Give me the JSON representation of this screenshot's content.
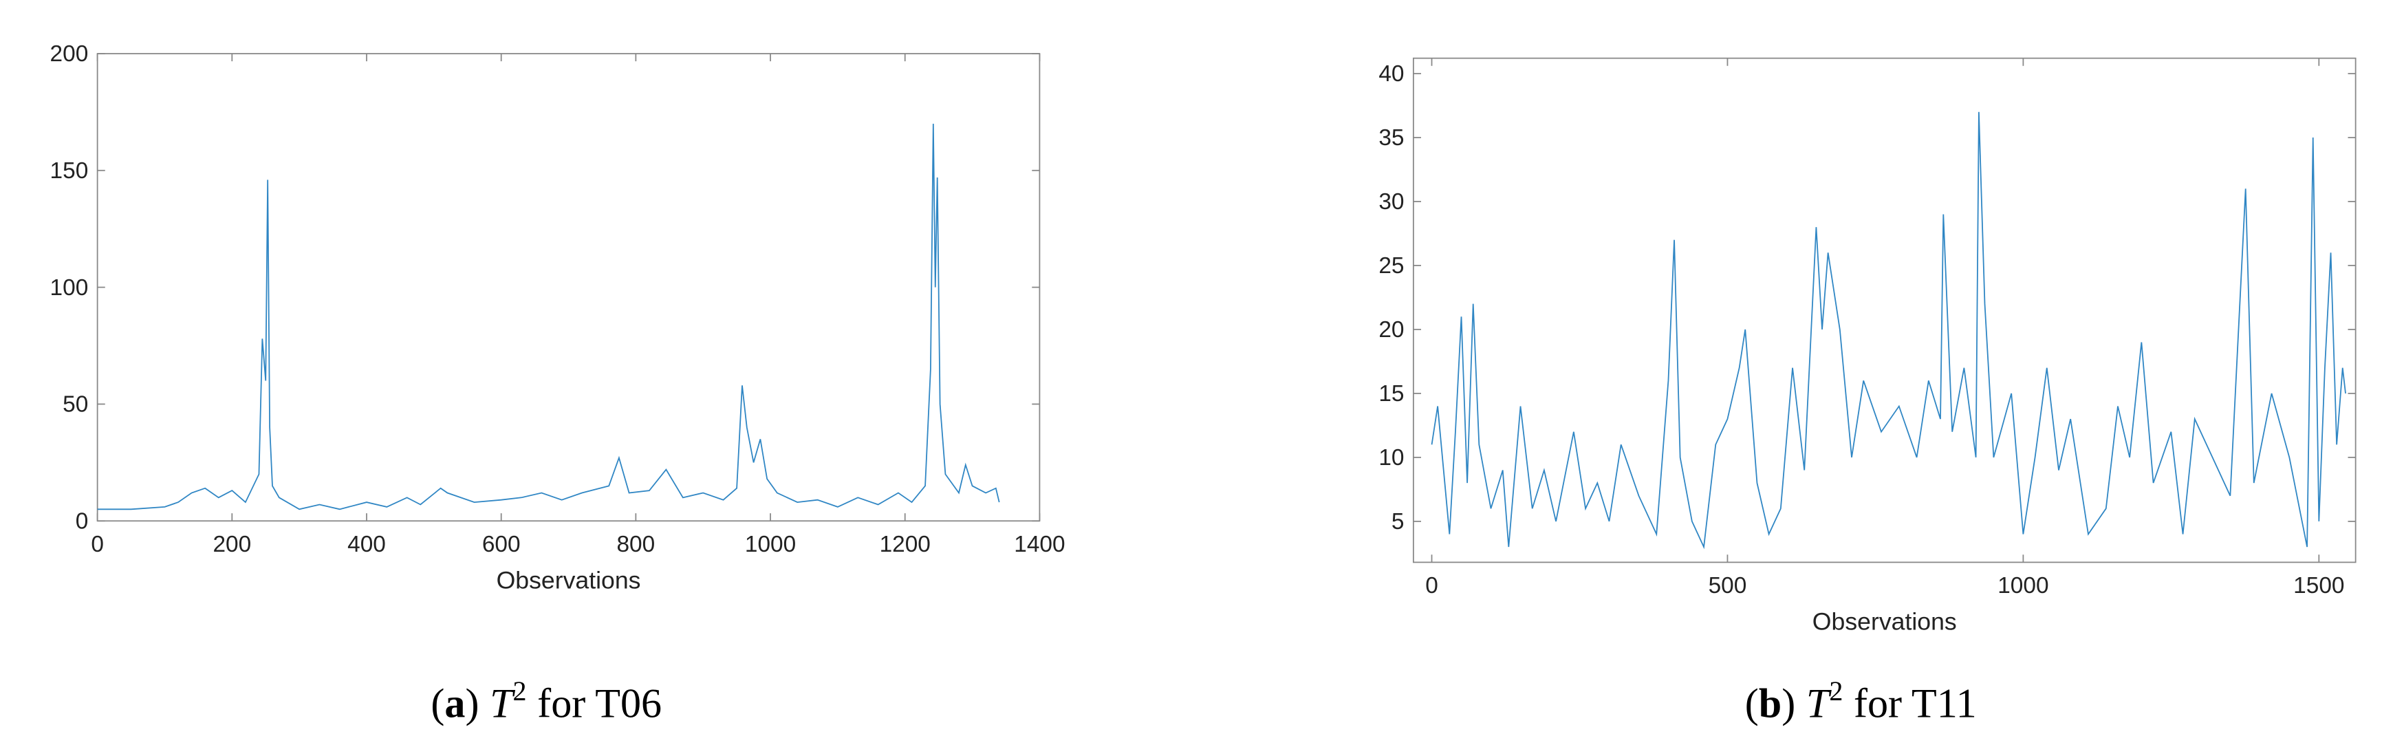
{
  "chart_data": [
    {
      "type": "line",
      "xlabel": "Observations",
      "xlim": [
        0,
        1400
      ],
      "xticks": [
        0,
        200,
        400,
        600,
        800,
        1000,
        1200,
        1400
      ],
      "ylim": [
        0,
        200
      ],
      "yticks": [
        0,
        50,
        100,
        150,
        200
      ],
      "caption": {
        "open": "(",
        "label": "a",
        "close": ")",
        "symbol": "T",
        "superscript": "2",
        "text": "for T06"
      },
      "series": [
        {
          "color": "#2f86c4",
          "x": [
            0,
            50,
            100,
            120,
            140,
            160,
            180,
            200,
            220,
            240,
            245,
            250,
            253,
            256,
            260,
            270,
            300,
            330,
            360,
            400,
            430,
            460,
            480,
            510,
            520,
            560,
            600,
            630,
            660,
            690,
            720,
            760,
            775,
            790,
            820,
            845,
            870,
            900,
            930,
            950,
            958,
            965,
            975,
            985,
            995,
            1010,
            1040,
            1070,
            1100,
            1130,
            1160,
            1190,
            1210,
            1230,
            1238,
            1242,
            1245,
            1248,
            1252,
            1260,
            1280,
            1290,
            1300,
            1320,
            1335,
            1340
          ],
          "values": [
            5,
            5,
            6,
            8,
            12,
            14,
            10,
            13,
            8,
            20,
            78,
            60,
            146,
            40,
            15,
            10,
            5,
            7,
            5,
            8,
            6,
            10,
            7,
            14,
            12,
            8,
            9,
            10,
            12,
            9,
            12,
            15,
            27,
            12,
            13,
            22,
            10,
            12,
            9,
            14,
            58,
            40,
            25,
            35,
            18,
            12,
            8,
            9,
            6,
            10,
            7,
            12,
            8,
            15,
            65,
            170,
            100,
            147,
            50,
            20,
            12,
            24,
            15,
            12,
            14,
            8
          ]
        }
      ]
    },
    {
      "type": "line",
      "xlabel": "Observations",
      "xlim": [
        -31,
        1562
      ],
      "xticks": [
        0,
        500,
        1000,
        1500
      ],
      "ylim": [
        1.8,
        41.2
      ],
      "yticks": [
        5,
        10,
        15,
        20,
        25,
        30,
        35,
        40
      ],
      "caption": {
        "open": "(",
        "label": "b",
        "close": ")",
        "symbol": "T",
        "superscript": "2",
        "text": "for T11"
      },
      "series": [
        {
          "color": "#2f86c4",
          "x": [
            0,
            10,
            20,
            30,
            40,
            50,
            60,
            70,
            80,
            100,
            120,
            130,
            150,
            170,
            190,
            210,
            240,
            260,
            280,
            300,
            320,
            350,
            380,
            400,
            410,
            420,
            440,
            460,
            480,
            500,
            520,
            530,
            550,
            570,
            590,
            610,
            630,
            650,
            660,
            670,
            690,
            710,
            730,
            760,
            790,
            820,
            840,
            860,
            865,
            880,
            900,
            920,
            925,
            935,
            950,
            980,
            1000,
            1020,
            1040,
            1060,
            1080,
            1110,
            1140,
            1160,
            1180,
            1200,
            1220,
            1250,
            1270,
            1290,
            1320,
            1350,
            1376,
            1390,
            1420,
            1450,
            1480,
            1490,
            1500,
            1510,
            1520,
            1530,
            1540,
            1545
          ],
          "values": [
            11,
            14,
            9,
            4,
            12,
            21,
            8,
            22,
            11,
            6,
            9,
            3,
            14,
            6,
            9,
            5,
            12,
            6,
            8,
            5,
            11,
            7,
            4,
            16,
            27,
            10,
            5,
            3,
            11,
            13,
            17,
            20,
            8,
            4,
            6,
            17,
            9,
            28,
            20,
            26,
            20,
            10,
            16,
            12,
            14,
            10,
            16,
            13,
            29,
            12,
            17,
            10,
            37,
            22,
            10,
            15,
            4,
            10,
            17,
            9,
            13,
            4,
            6,
            14,
            10,
            19,
            8,
            12,
            4,
            13,
            10,
            7,
            31,
            8,
            15,
            10,
            3,
            35,
            5,
            17,
            26,
            11,
            17,
            15
          ]
        }
      ]
    }
  ]
}
